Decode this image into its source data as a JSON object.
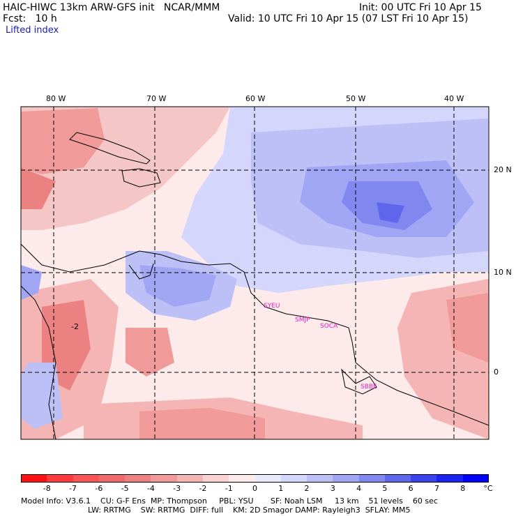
{
  "header": {
    "title": "HAIC-HIWC 13km ARW-GFS init   NCAR/MMM",
    "init": "Init: 00 UTC Fri 10 Apr 15",
    "fcst": "Fcst:   10 h",
    "valid": "Valid: 10 UTC Fri 10 Apr 15 (07 LST Fri 10 Apr 15)",
    "field": "Lifted index"
  },
  "axes": {
    "lon_labels": [
      "80 W",
      "70 W",
      "60 W",
      "50 W",
      "40 W"
    ],
    "lat_labels": [
      "20 N",
      "10 N",
      "0"
    ]
  },
  "stations": [
    "SYEU",
    "SMJP",
    "SOCA",
    "SBBE"
  ],
  "contour_label": "-2",
  "colorbar": {
    "ticks": [
      "-8",
      "-7",
      "-6",
      "-5",
      "-4",
      "-3",
      "-2",
      "-1",
      "0",
      "1",
      "2",
      "3",
      "4",
      "5",
      "6",
      "7",
      "8"
    ],
    "unit": "°C",
    "colors": [
      "#ff1010",
      "#ff3a3a",
      "#f95555",
      "#f16a6a",
      "#ec8181",
      "#f09a9a",
      "#f5b5b5",
      "#fad2d2",
      "#fdeaea",
      "#eaeaff",
      "#d4d6fb",
      "#bcc0f7",
      "#a0a6f3",
      "#8088f0",
      "#5e66ec",
      "#3a42ee",
      "#1b22f4",
      "#0000ff"
    ]
  },
  "footer": {
    "line1": "Model Info: V3.6.1    CU: G-F Ens  MP: Thompson     PBL: YSU       SF: Noah LSM     13 km    51 levels    60 sec",
    "line2": "LW: RRTMG    SW: RRTMG  DIFF: full    KM: 2D Smagor DAMP: Rayleigh3  SFLAY: MM5"
  }
}
